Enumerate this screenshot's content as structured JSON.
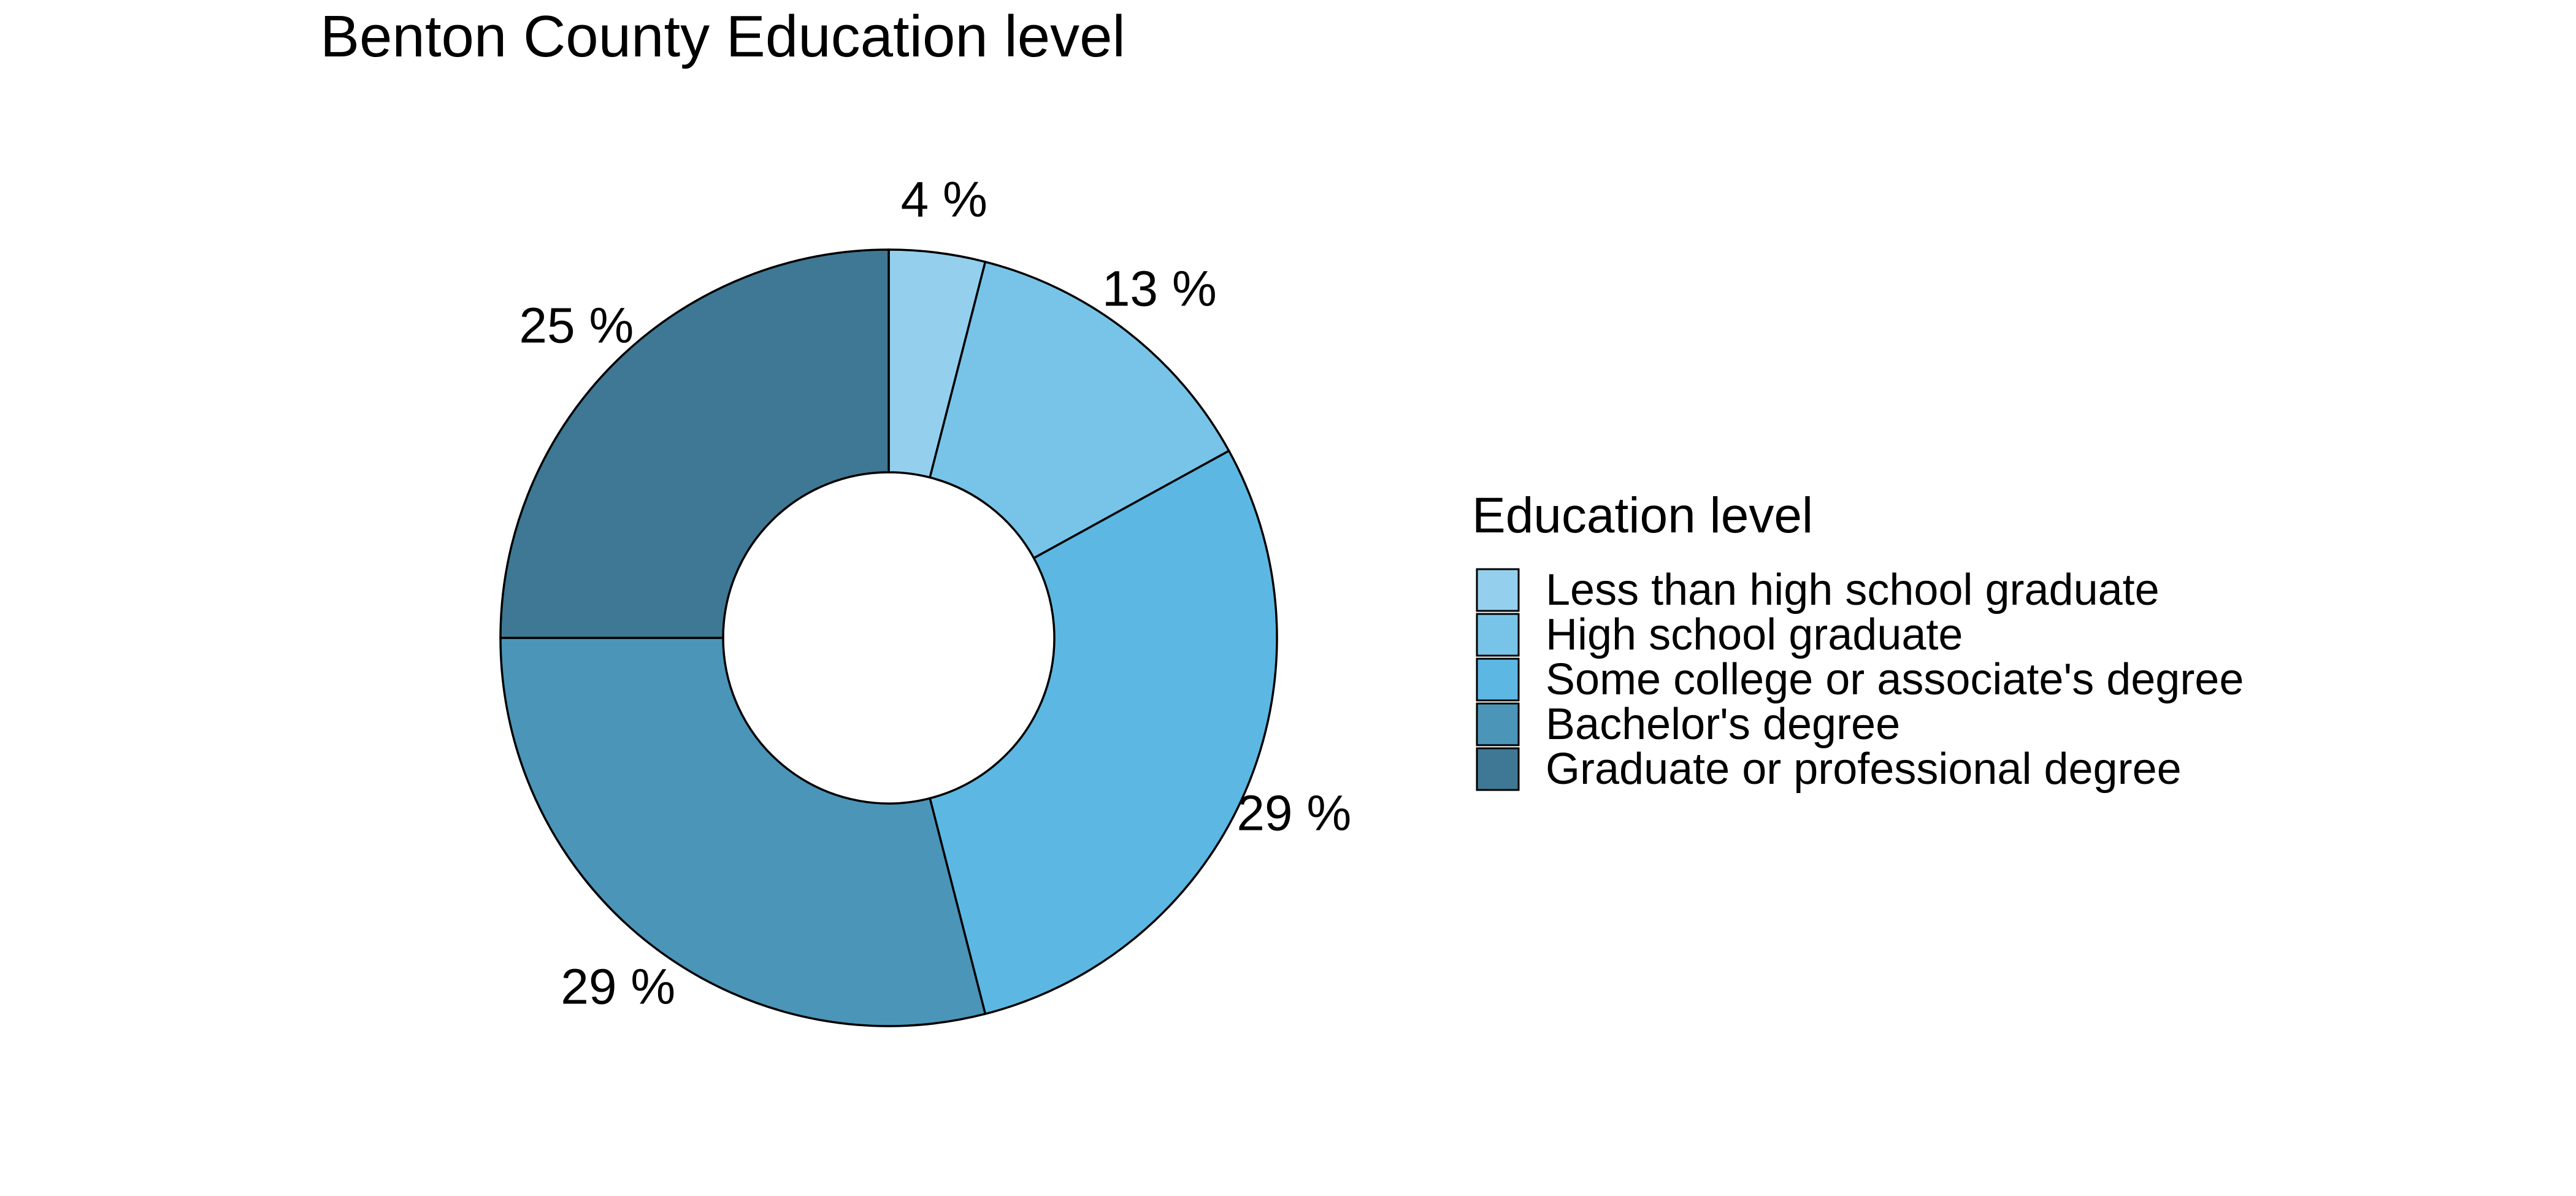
{
  "chart_data": {
    "type": "pie",
    "title": "Benton County Education level",
    "categories": [
      "Less than high school graduate",
      "High school graduate",
      "Some college or associate's degree",
      "Bachelor's degree",
      "Graduate or professional degree"
    ],
    "values": [
      4,
      13,
      29,
      29,
      25
    ],
    "labels": [
      "4 %",
      "13 %",
      "29 %",
      "29 %",
      "25 %"
    ],
    "colors": [
      "#94d0ee",
      "#78c4e8",
      "#5cb8e2",
      "#4b95b9",
      "#3e7894"
    ],
    "legend": {
      "title": "Education level",
      "position": "right"
    }
  }
}
